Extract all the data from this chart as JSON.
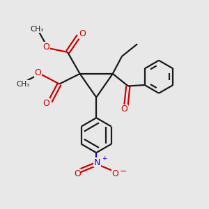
{
  "background_color": "#e8e8e8",
  "bond_color": "#1a1a1a",
  "oxygen_color": "#cc0000",
  "nitrogen_color": "#2200cc",
  "line_width": 1.6,
  "figsize": [
    3.0,
    3.0
  ],
  "dpi": 100,
  "xlim": [
    0,
    10
  ],
  "ylim": [
    0,
    10
  ],
  "c1x": 3.8,
  "c1y": 6.5,
  "c2x": 5.4,
  "c2y": 6.5,
  "c3x": 4.6,
  "c3y": 5.35
}
